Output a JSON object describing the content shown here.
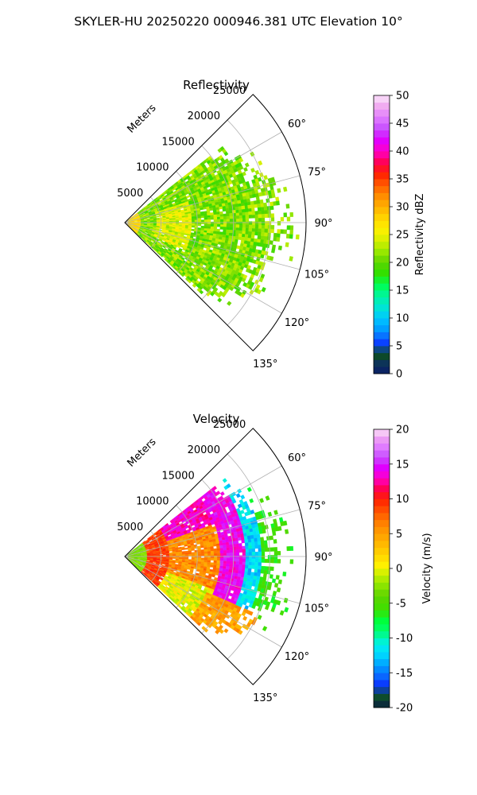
{
  "figure": {
    "suptitle": "SKYLER-HU  20250220  000946.381 UTC Elevation 10°"
  },
  "chart_data": [
    {
      "type": "heatmap",
      "subtype": "polar-sector-ppi",
      "title": "Reflectivity",
      "range_label": "Meters",
      "r_ticks": [
        5000,
        10000,
        15000,
        20000,
        25000
      ],
      "r_tick_labels": [
        "5000",
        "10000",
        "15000",
        "20000",
        "25000"
      ],
      "rlim": [
        0,
        25000
      ],
      "theta_ticks": [
        60,
        75,
        90,
        105,
        120,
        135
      ],
      "theta_tick_labels": [
        "60°",
        "75°",
        "90°",
        "105°",
        "120°",
        "135°"
      ],
      "theta_range": [
        45,
        135
      ],
      "grid": true,
      "colorbar": {
        "label": "Reflectivity dBZ",
        "vmin": 0,
        "vmax": 50,
        "ticks": [
          0,
          5,
          10,
          15,
          20,
          25,
          30,
          35,
          40,
          45,
          50
        ],
        "tick_labels": [
          "0",
          "5",
          "10",
          "15",
          "20",
          "25",
          "30",
          "35",
          "40",
          "45",
          "50"
        ]
      },
      "field": {
        "description_of_values": "echo covering azimuths ~52°–133°, ranges 0–~24000 m, mostly 18–28 dBZ",
        "azimuth_extent": [
          52,
          133
        ],
        "range_extent": [
          0,
          24000
        ],
        "typical_value": 22,
        "near_range_value": 26
      }
    },
    {
      "type": "heatmap",
      "subtype": "polar-sector-ppi",
      "title": "Velocity",
      "range_label": "Meters",
      "r_ticks": [
        5000,
        10000,
        15000,
        20000,
        25000
      ],
      "r_tick_labels": [
        "5000",
        "10000",
        "15000",
        "20000",
        "25000"
      ],
      "rlim": [
        0,
        25000
      ],
      "theta_ticks": [
        60,
        75,
        90,
        105,
        120,
        135
      ],
      "theta_tick_labels": [
        "60°",
        "75°",
        "90°",
        "105°",
        "120°",
        "135°"
      ],
      "theta_range": [
        45,
        135
      ],
      "grid": true,
      "colorbar": {
        "label": "Velocity (m/s)",
        "vmin": -20,
        "vmax": 20,
        "ticks": [
          -20,
          -15,
          -10,
          -5,
          0,
          5,
          10,
          15,
          20
        ],
        "tick_labels": [
          "-20",
          "-15",
          "-10",
          "-5",
          "0",
          "5",
          "10",
          "15",
          "20"
        ]
      },
      "field": {
        "description_of_values": "inner ring ~-3 m/s, 5–15 km band +8 to +12 m/s, folded ring ~+15 m/s near 17 km, outer -10 to -5 m/s",
        "azimuth_extent": [
          52,
          133
        ],
        "range_extent": [
          0,
          24000
        ]
      }
    }
  ]
}
